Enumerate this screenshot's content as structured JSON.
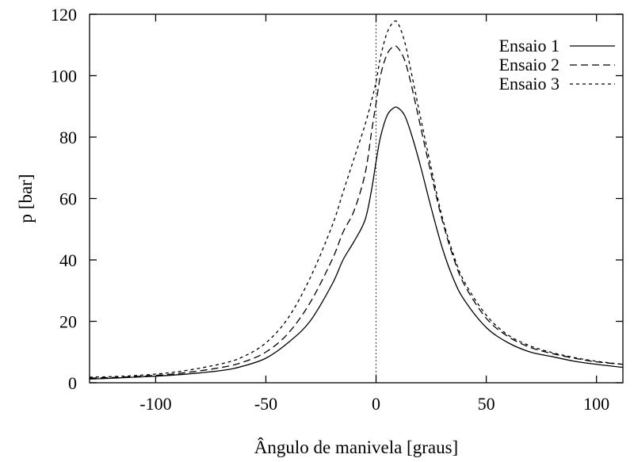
{
  "chart_data": {
    "type": "line",
    "title": "",
    "xlabel": "Ângulo de manivela  [graus]",
    "ylabel": "p  [bar]",
    "xlim": [
      -130,
      112
    ],
    "ylim": [
      0,
      120
    ],
    "xticks": [
      -100,
      -50,
      0,
      50,
      100
    ],
    "xtick_labels": [
      "-100",
      "-50",
      "0",
      "50",
      "100"
    ],
    "yticks": [
      0,
      20,
      40,
      60,
      80,
      100,
      120
    ],
    "ytick_labels": [
      "0",
      "20",
      "40",
      "60",
      "80",
      "100",
      "120"
    ],
    "grid": false,
    "legend_position": "top-right",
    "reference_line": {
      "x": 0,
      "style": "dotted"
    },
    "series": [
      {
        "name": "Ensaio 1",
        "dash": "solid",
        "x": [
          -130,
          -110,
          -90,
          -70,
          -60,
          -50,
          -40,
          -30,
          -20,
          -15,
          -10,
          -5,
          -2,
          0,
          2,
          5,
          8,
          10,
          13,
          16,
          20,
          25,
          30,
          35,
          40,
          50,
          60,
          70,
          80,
          90,
          100,
          112
        ],
        "y": [
          1.2,
          1.8,
          2.6,
          4.0,
          5.5,
          8.0,
          13.0,
          20.0,
          32.0,
          40.0,
          46.0,
          53.0,
          63.0,
          72.0,
          80.0,
          87.0,
          89.5,
          89.5,
          87.0,
          81.0,
          71.0,
          57.0,
          44.0,
          34.0,
          27.0,
          18.0,
          13.0,
          10.0,
          8.5,
          7.0,
          6.0,
          5.0
        ]
      },
      {
        "name": "Ensaio 2",
        "dash": "dashed",
        "x": [
          -130,
          -110,
          -90,
          -70,
          -60,
          -50,
          -40,
          -30,
          -20,
          -15,
          -10,
          -5,
          -2,
          0,
          2,
          5,
          8,
          10,
          13,
          16,
          20,
          25,
          30,
          35,
          40,
          50,
          60,
          70,
          80,
          90,
          100,
          112
        ],
        "y": [
          1.5,
          2.0,
          3.0,
          5.0,
          6.8,
          10.0,
          16.0,
          26.0,
          40.0,
          49.0,
          56.0,
          68.0,
          82.0,
          91.0,
          100.0,
          107.0,
          109.5,
          109.0,
          105.0,
          97.0,
          84.0,
          68.0,
          53.0,
          41.0,
          32.0,
          21.0,
          15.0,
          11.5,
          9.5,
          8.0,
          6.8,
          6.0
        ]
      },
      {
        "name": "Ensaio 3",
        "dash": "dotted-dash",
        "x": [
          -130,
          -110,
          -90,
          -70,
          -60,
          -50,
          -40,
          -30,
          -20,
          -15,
          -10,
          -5,
          -2,
          0,
          2,
          5,
          8,
          10,
          13,
          16,
          20,
          25,
          30,
          35,
          40,
          50,
          60,
          70,
          80,
          90,
          100,
          112
        ],
        "y": [
          1.8,
          2.3,
          3.6,
          6.2,
          8.6,
          13.0,
          21.0,
          34.0,
          51.0,
          62.0,
          73.0,
          84.0,
          92.0,
          98.0,
          106.0,
          114.0,
          117.5,
          117.0,
          111.0,
          101.0,
          87.0,
          70.0,
          54.0,
          42.0,
          33.0,
          22.0,
          15.5,
          12.0,
          9.8,
          8.2,
          7.0,
          6.0
        ]
      }
    ]
  }
}
